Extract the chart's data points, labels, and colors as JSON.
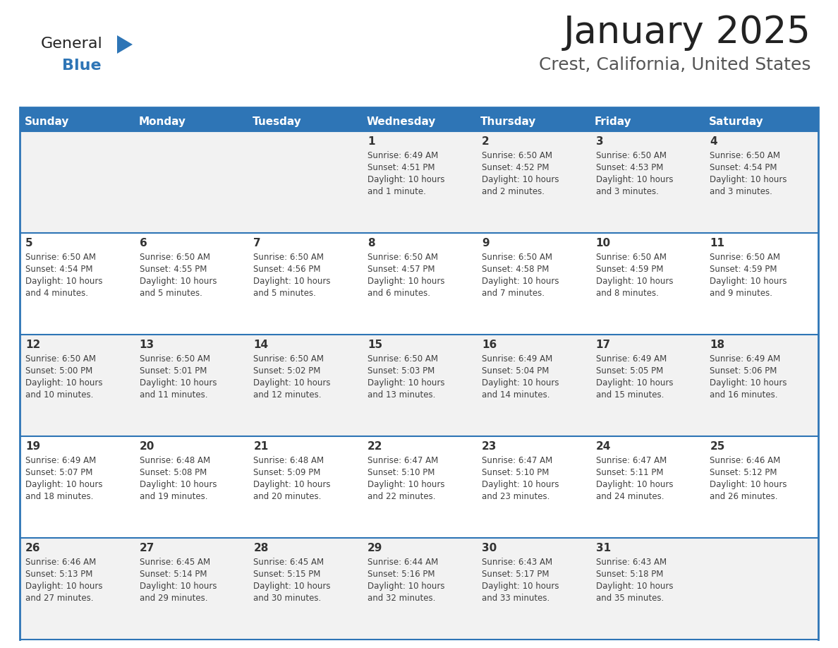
{
  "title": "January 2025",
  "subtitle": "Crest, California, United States",
  "days_of_week": [
    "Sunday",
    "Monday",
    "Tuesday",
    "Wednesday",
    "Thursday",
    "Friday",
    "Saturday"
  ],
  "header_bg": "#2E75B6",
  "header_text_color": "#FFFFFF",
  "cell_bg_odd": "#F2F2F2",
  "cell_bg_even": "#FFFFFF",
  "border_color": "#2E75B6",
  "text_color": "#404040",
  "title_color": "#222222",
  "subtitle_color": "#555555",
  "num_color": "#333333",
  "calendar_data": [
    {
      "day": 1,
      "row": 0,
      "col": 3,
      "sunrise": "6:49 AM",
      "sunset": "4:51 PM",
      "daylight": "10 hours and 1 minute."
    },
    {
      "day": 2,
      "row": 0,
      "col": 4,
      "sunrise": "6:50 AM",
      "sunset": "4:52 PM",
      "daylight": "10 hours and 2 minutes."
    },
    {
      "day": 3,
      "row": 0,
      "col": 5,
      "sunrise": "6:50 AM",
      "sunset": "4:53 PM",
      "daylight": "10 hours and 3 minutes."
    },
    {
      "day": 4,
      "row": 0,
      "col": 6,
      "sunrise": "6:50 AM",
      "sunset": "4:54 PM",
      "daylight": "10 hours and 3 minutes."
    },
    {
      "day": 5,
      "row": 1,
      "col": 0,
      "sunrise": "6:50 AM",
      "sunset": "4:54 PM",
      "daylight": "10 hours and 4 minutes."
    },
    {
      "day": 6,
      "row": 1,
      "col": 1,
      "sunrise": "6:50 AM",
      "sunset": "4:55 PM",
      "daylight": "10 hours and 5 minutes."
    },
    {
      "day": 7,
      "row": 1,
      "col": 2,
      "sunrise": "6:50 AM",
      "sunset": "4:56 PM",
      "daylight": "10 hours and 5 minutes."
    },
    {
      "day": 8,
      "row": 1,
      "col": 3,
      "sunrise": "6:50 AM",
      "sunset": "4:57 PM",
      "daylight": "10 hours and 6 minutes."
    },
    {
      "day": 9,
      "row": 1,
      "col": 4,
      "sunrise": "6:50 AM",
      "sunset": "4:58 PM",
      "daylight": "10 hours and 7 minutes."
    },
    {
      "day": 10,
      "row": 1,
      "col": 5,
      "sunrise": "6:50 AM",
      "sunset": "4:59 PM",
      "daylight": "10 hours and 8 minutes."
    },
    {
      "day": 11,
      "row": 1,
      "col": 6,
      "sunrise": "6:50 AM",
      "sunset": "4:59 PM",
      "daylight": "10 hours and 9 minutes."
    },
    {
      "day": 12,
      "row": 2,
      "col": 0,
      "sunrise": "6:50 AM",
      "sunset": "5:00 PM",
      "daylight": "10 hours and 10 minutes."
    },
    {
      "day": 13,
      "row": 2,
      "col": 1,
      "sunrise": "6:50 AM",
      "sunset": "5:01 PM",
      "daylight": "10 hours and 11 minutes."
    },
    {
      "day": 14,
      "row": 2,
      "col": 2,
      "sunrise": "6:50 AM",
      "sunset": "5:02 PM",
      "daylight": "10 hours and 12 minutes."
    },
    {
      "day": 15,
      "row": 2,
      "col": 3,
      "sunrise": "6:50 AM",
      "sunset": "5:03 PM",
      "daylight": "10 hours and 13 minutes."
    },
    {
      "day": 16,
      "row": 2,
      "col": 4,
      "sunrise": "6:49 AM",
      "sunset": "5:04 PM",
      "daylight": "10 hours and 14 minutes."
    },
    {
      "day": 17,
      "row": 2,
      "col": 5,
      "sunrise": "6:49 AM",
      "sunset": "5:05 PM",
      "daylight": "10 hours and 15 minutes."
    },
    {
      "day": 18,
      "row": 2,
      "col": 6,
      "sunrise": "6:49 AM",
      "sunset": "5:06 PM",
      "daylight": "10 hours and 16 minutes."
    },
    {
      "day": 19,
      "row": 3,
      "col": 0,
      "sunrise": "6:49 AM",
      "sunset": "5:07 PM",
      "daylight": "10 hours and 18 minutes."
    },
    {
      "day": 20,
      "row": 3,
      "col": 1,
      "sunrise": "6:48 AM",
      "sunset": "5:08 PM",
      "daylight": "10 hours and 19 minutes."
    },
    {
      "day": 21,
      "row": 3,
      "col": 2,
      "sunrise": "6:48 AM",
      "sunset": "5:09 PM",
      "daylight": "10 hours and 20 minutes."
    },
    {
      "day": 22,
      "row": 3,
      "col": 3,
      "sunrise": "6:47 AM",
      "sunset": "5:10 PM",
      "daylight": "10 hours and 22 minutes."
    },
    {
      "day": 23,
      "row": 3,
      "col": 4,
      "sunrise": "6:47 AM",
      "sunset": "5:10 PM",
      "daylight": "10 hours and 23 minutes."
    },
    {
      "day": 24,
      "row": 3,
      "col": 5,
      "sunrise": "6:47 AM",
      "sunset": "5:11 PM",
      "daylight": "10 hours and 24 minutes."
    },
    {
      "day": 25,
      "row": 3,
      "col": 6,
      "sunrise": "6:46 AM",
      "sunset": "5:12 PM",
      "daylight": "10 hours and 26 minutes."
    },
    {
      "day": 26,
      "row": 4,
      "col": 0,
      "sunrise": "6:46 AM",
      "sunset": "5:13 PM",
      "daylight": "10 hours and 27 minutes."
    },
    {
      "day": 27,
      "row": 4,
      "col": 1,
      "sunrise": "6:45 AM",
      "sunset": "5:14 PM",
      "daylight": "10 hours and 29 minutes."
    },
    {
      "day": 28,
      "row": 4,
      "col": 2,
      "sunrise": "6:45 AM",
      "sunset": "5:15 PM",
      "daylight": "10 hours and 30 minutes."
    },
    {
      "day": 29,
      "row": 4,
      "col": 3,
      "sunrise": "6:44 AM",
      "sunset": "5:16 PM",
      "daylight": "10 hours and 32 minutes."
    },
    {
      "day": 30,
      "row": 4,
      "col": 4,
      "sunrise": "6:43 AM",
      "sunset": "5:17 PM",
      "daylight": "10 hours and 33 minutes."
    },
    {
      "day": 31,
      "row": 4,
      "col": 5,
      "sunrise": "6:43 AM",
      "sunset": "5:18 PM",
      "daylight": "10 hours and 35 minutes."
    }
  ],
  "logo_text_general": "General",
  "logo_text_blue": "Blue",
  "logo_color_general": "#222222",
  "logo_color_blue": "#2E75B6",
  "logo_triangle_color": "#2E75B6",
  "fig_width": 11.88,
  "fig_height": 9.18,
  "dpi": 100
}
